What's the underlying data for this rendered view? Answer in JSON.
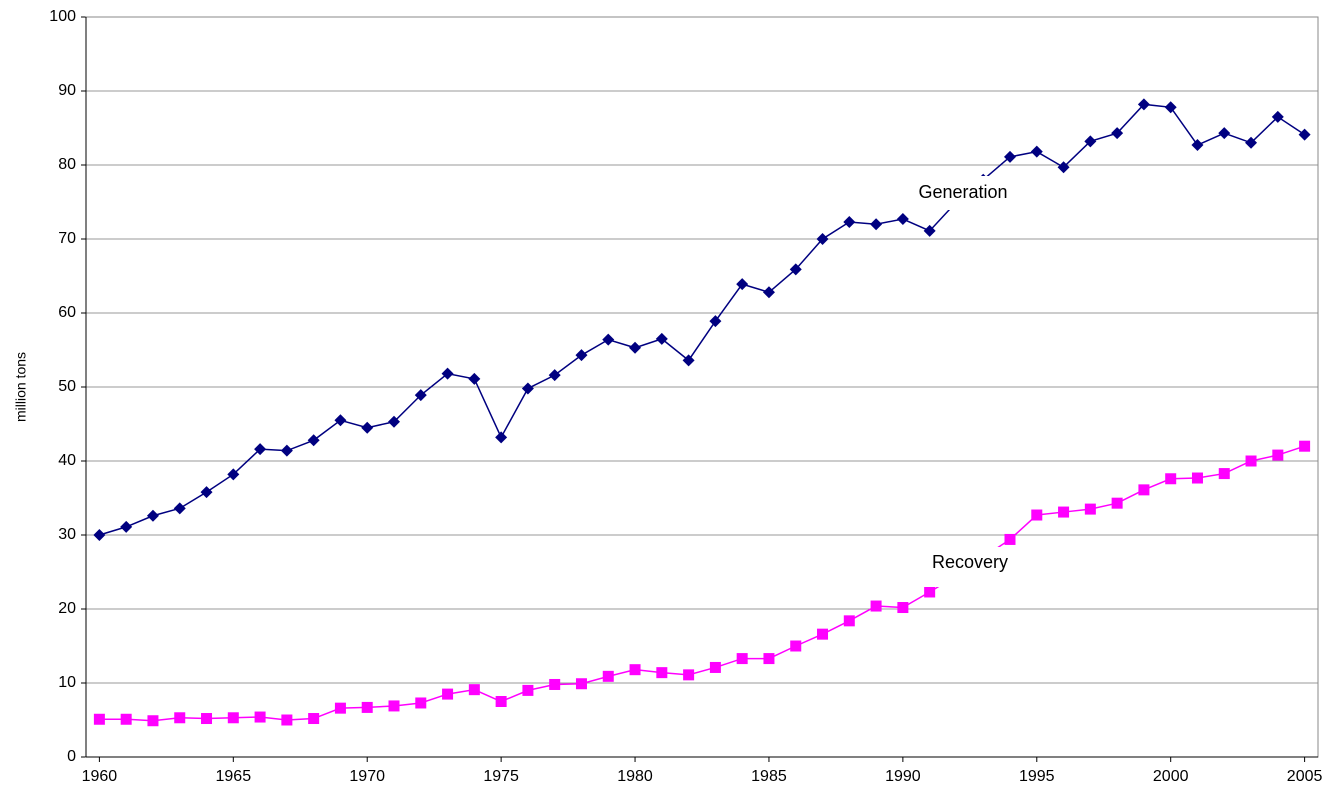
{
  "chart_data": {
    "type": "line",
    "y_label": "million tons",
    "x": [
      1960,
      1961,
      1962,
      1963,
      1964,
      1965,
      1966,
      1967,
      1968,
      1969,
      1970,
      1971,
      1972,
      1973,
      1974,
      1975,
      1976,
      1977,
      1978,
      1979,
      1980,
      1981,
      1982,
      1983,
      1984,
      1985,
      1986,
      1987,
      1988,
      1989,
      1990,
      1991,
      1992,
      1993,
      1994,
      1995,
      1996,
      1997,
      1998,
      1999,
      2000,
      2001,
      2002,
      2003,
      2004,
      2005
    ],
    "series": [
      {
        "name": "Generation",
        "color": "#000080",
        "marker": "diamond",
        "values": [
          30.0,
          31.1,
          32.6,
          33.6,
          35.8,
          38.2,
          41.6,
          41.4,
          42.8,
          45.5,
          44.5,
          45.3,
          48.9,
          51.8,
          51.1,
          43.2,
          49.8,
          51.6,
          54.3,
          56.4,
          55.3,
          56.5,
          53.6,
          58.9,
          63.9,
          62.8,
          65.9,
          70.0,
          72.3,
          72.0,
          72.7,
          71.1,
          75.0,
          78.0,
          81.1,
          81.8,
          79.7,
          83.2,
          84.3,
          88.2,
          87.8,
          82.7,
          84.3,
          83.0,
          86.5,
          84.1
        ]
      },
      {
        "name": "Recovery",
        "color": "#ff00ff",
        "marker": "square",
        "values": [
          5.1,
          5.1,
          4.9,
          5.3,
          5.2,
          5.3,
          5.4,
          5.0,
          5.2,
          6.6,
          6.7,
          6.9,
          7.3,
          8.5,
          9.1,
          7.5,
          9.0,
          9.8,
          9.9,
          10.9,
          11.8,
          11.4,
          11.1,
          12.1,
          13.3,
          13.3,
          15.0,
          16.6,
          18.4,
          20.4,
          20.2,
          22.3,
          24.5,
          27.0,
          29.4,
          32.7,
          33.1,
          33.5,
          34.3,
          36.1,
          37.6,
          37.7,
          38.3,
          40.0,
          40.8,
          42.0
        ]
      }
    ],
    "xlim": [
      1959.5,
      2005.5
    ],
    "xticks": [
      1960,
      1965,
      1970,
      1975,
      1980,
      1985,
      1990,
      1995,
      2000,
      2005
    ],
    "ylim": [
      0,
      100
    ],
    "yticks": [
      0,
      10,
      20,
      30,
      40,
      50,
      60,
      70,
      80,
      90,
      100
    ],
    "grid": true
  }
}
